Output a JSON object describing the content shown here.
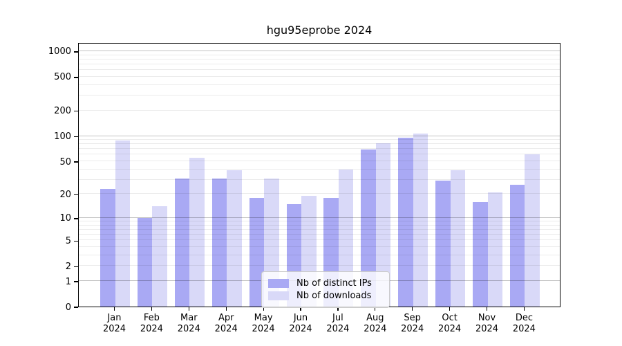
{
  "title": "hgu95eprobe 2024",
  "legend": {
    "items": [
      {
        "label": "Nb of distinct IPs",
        "color": "#a9a9f4"
      },
      {
        "label": "Nb of downloads",
        "color": "#d9d9f8"
      }
    ],
    "position": "lower center"
  },
  "chart_data": {
    "type": "bar",
    "title": "hgu95eprobe 2024",
    "categories": [
      "Jan",
      "Feb",
      "Mar",
      "Apr",
      "May",
      "Jun",
      "Jul",
      "Aug",
      "Sep",
      "Oct",
      "Nov",
      "Dec"
    ],
    "x_second_line": "2024",
    "series": [
      {
        "name": "Nb of distinct IPs",
        "color": "#a9a9f4",
        "values": [
          23,
          10,
          31,
          31,
          18,
          15,
          18,
          69,
          95,
          29,
          16,
          26
        ]
      },
      {
        "name": "Nb of downloads",
        "color": "#d9d9f8",
        "values": [
          88,
          14,
          55,
          39,
          31,
          19,
          40,
          82,
          107,
          39,
          21,
          60
        ]
      }
    ],
    "yscale": "log1p",
    "yticks": [
      0,
      1,
      2,
      5,
      10,
      20,
      50,
      100,
      200,
      500,
      1000
    ],
    "ylim": [
      0,
      1200
    ],
    "grid": "horizontal",
    "legend_position": "lower center"
  },
  "colors": {
    "background": "#ffffff",
    "frame": "#000000",
    "grid_major": "rgba(0,0,0,0.24)",
    "grid_minor": "rgba(0,0,0,0.08)",
    "text": "#000000"
  }
}
